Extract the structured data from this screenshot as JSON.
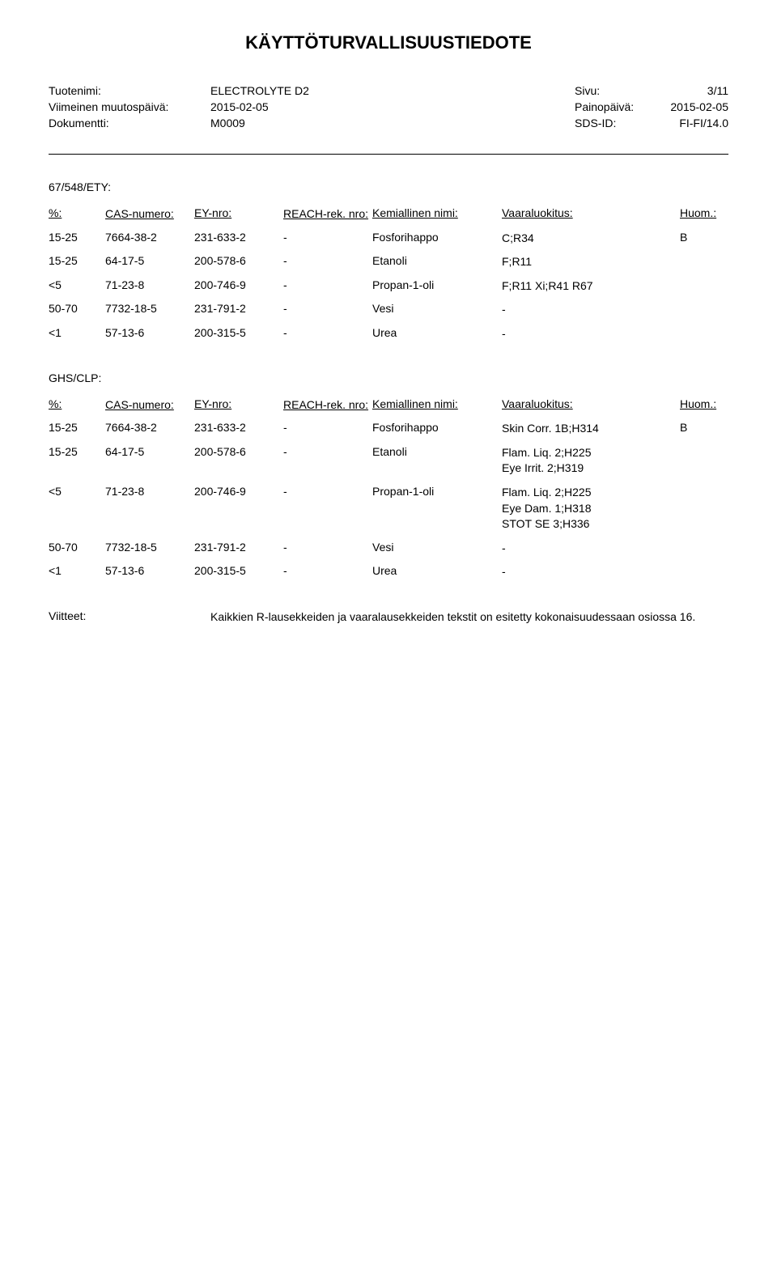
{
  "title": "KÄYTTÖTURVALLISUUSTIEDOTE",
  "header": {
    "product_label": "Tuotenimi:",
    "product_value": "ELECTROLYTE D2",
    "page_label": "Sivu:",
    "page_value": "3/11",
    "lastmod_label": "Viimeinen muutospäivä:",
    "lastmod_value": "2015-02-05",
    "printdate_label": "Painopäivä:",
    "printdate_value": "2015-02-05",
    "doc_label": "Dokumentti:",
    "doc_value": "M0009",
    "sds_label": "SDS-ID:",
    "sds_value": "FI-FI/14.0"
  },
  "section1": {
    "label": "67/548/ETY:",
    "headers": {
      "pct": "%:",
      "cas": "CAS-numero:",
      "ey": "EY-nro:",
      "reach": "REACH-rek. nro:",
      "chem": "Kemiallinen nimi:",
      "hazard": "Vaaraluokitus:",
      "note": "Huom.:"
    },
    "rows": [
      {
        "pct": "15-25",
        "cas": "7664-38-2",
        "ey": "231-633-2",
        "reach": "-",
        "chem": "Fosforihappo",
        "hazard": "C;R34",
        "note": "B"
      },
      {
        "pct": "15-25",
        "cas": "64-17-5",
        "ey": "200-578-6",
        "reach": "-",
        "chem": "Etanoli",
        "hazard": "F;R11",
        "note": ""
      },
      {
        "pct": "<5",
        "cas": "71-23-8",
        "ey": "200-746-9",
        "reach": "-",
        "chem": "Propan-1-oli",
        "hazard": "F;R11 Xi;R41 R67",
        "note": ""
      },
      {
        "pct": "50-70",
        "cas": "7732-18-5",
        "ey": "231-791-2",
        "reach": "-",
        "chem": "Vesi",
        "hazard": "-",
        "note": ""
      },
      {
        "pct": "<1",
        "cas": "57-13-6",
        "ey": "200-315-5",
        "reach": "-",
        "chem": "Urea",
        "hazard": "-",
        "note": ""
      }
    ]
  },
  "section2": {
    "label": "GHS/CLP:",
    "headers": {
      "pct": "%:",
      "cas": "CAS-numero:",
      "ey": "EY-nro:",
      "reach": "REACH-rek. nro:",
      "chem": "Kemiallinen nimi:",
      "hazard": "Vaaraluokitus:",
      "note": "Huom.:"
    },
    "rows": [
      {
        "pct": "15-25",
        "cas": "7664-38-2",
        "ey": "231-633-2",
        "reach": "-",
        "chem": "Fosforihappo",
        "hazard": "Skin Corr. 1B;H314",
        "note": "B"
      },
      {
        "pct": "15-25",
        "cas": "64-17-5",
        "ey": "200-578-6",
        "reach": "-",
        "chem": "Etanoli",
        "hazard": "Flam. Liq. 2;H225\nEye Irrit. 2;H319",
        "note": ""
      },
      {
        "pct": "<5",
        "cas": "71-23-8",
        "ey": "200-746-9",
        "reach": "-",
        "chem": "Propan-1-oli",
        "hazard": "Flam. Liq. 2;H225\nEye Dam. 1;H318\nSTOT SE 3;H336",
        "note": ""
      },
      {
        "pct": "50-70",
        "cas": "7732-18-5",
        "ey": "231-791-2",
        "reach": "-",
        "chem": "Vesi",
        "hazard": "-",
        "note": ""
      },
      {
        "pct": "<1",
        "cas": "57-13-6",
        "ey": "200-315-5",
        "reach": "-",
        "chem": "Urea",
        "hazard": "-",
        "note": ""
      }
    ]
  },
  "footer": {
    "label": "Viitteet:",
    "text": "Kaikkien R-lausekkeiden ja vaaralausekkeiden tekstit on esitetty kokonaisuudessaan osiossa 16."
  }
}
